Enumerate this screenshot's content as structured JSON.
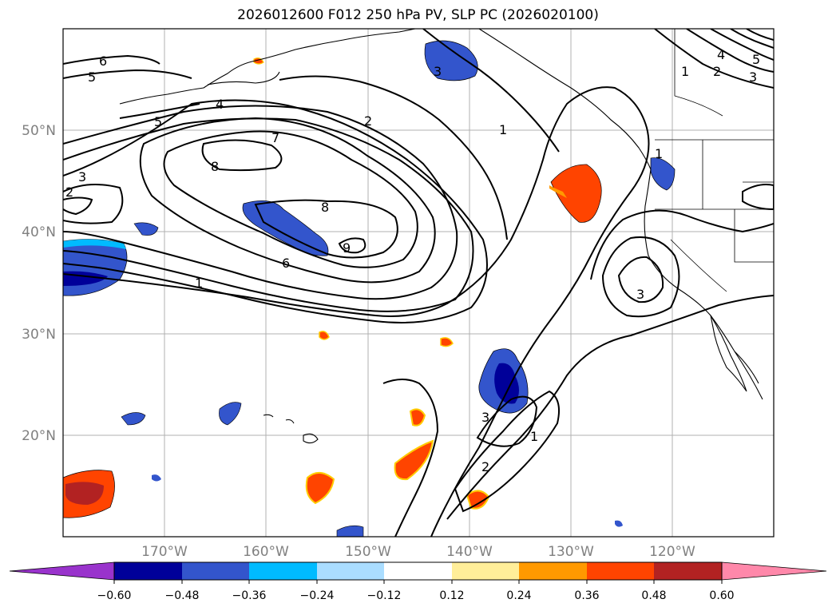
{
  "map": {
    "title": "2026012600 F012 250 hPa PV, SLP PC (2026020100)",
    "lat_labels": [
      "50°N",
      "40°N",
      "30°N",
      "20°N"
    ],
    "lon_labels": [
      "170°W",
      "160°W",
      "150°W",
      "140°W",
      "130°W",
      "120°W"
    ],
    "colorbar": {
      "ticks": [
        "−0.60",
        "−0.48",
        "−0.36",
        "−0.24",
        "−0.12",
        "0.12",
        "0.24",
        "0.36",
        "0.48",
        "0.60"
      ],
      "colors": [
        "#9933cc",
        "#000099",
        "#3355cc",
        "#00bbff",
        "#aaddff",
        "#ffffff",
        "#ffee99",
        "#ff9900",
        "#ff4400",
        "#b22222",
        "#ff88aa"
      ]
    },
    "contour_labels": [
      {
        "text": "6"
      },
      {
        "text": "5"
      },
      {
        "text": "4"
      },
      {
        "text": "5"
      },
      {
        "text": "3"
      },
      {
        "text": "2"
      },
      {
        "text": "7"
      },
      {
        "text": "8"
      },
      {
        "text": "8"
      },
      {
        "text": "9"
      },
      {
        "text": "6"
      },
      {
        "text": "1"
      },
      {
        "text": "3"
      },
      {
        "text": "2"
      },
      {
        "text": "1"
      },
      {
        "text": "1"
      },
      {
        "text": "3"
      },
      {
        "text": "3"
      },
      {
        "text": "2"
      },
      {
        "text": "1"
      },
      {
        "text": "1"
      },
      {
        "text": "2"
      },
      {
        "text": "3"
      },
      {
        "text": "4"
      },
      {
        "text": "5"
      }
    ]
  }
}
